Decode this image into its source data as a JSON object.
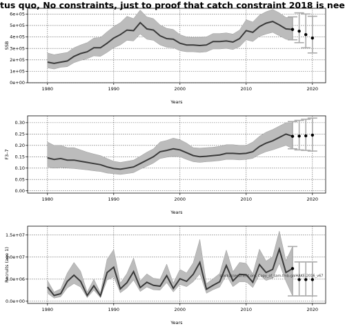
{
  "title": "tus quo, No constraints, just to proof that catch constraint 2018 is nee",
  "chart_data": [
    {
      "type": "line",
      "xlabel": "Years",
      "ylabel": "SSB",
      "xlim": [
        1977,
        2022
      ],
      "ylim": [
        0,
        650000
      ],
      "xticks": [
        1980,
        1990,
        2000,
        2010,
        2020
      ],
      "xtick_labels": [
        "1980",
        "1990",
        "2000",
        "2010",
        "2020"
      ],
      "yticks": [
        0,
        100000,
        200000,
        300000,
        400000,
        500000,
        600000
      ],
      "ytick_labels": [
        "0e+00",
        "1e+05",
        "2e+05",
        "3e+05",
        "4e+05",
        "5e+05",
        "6e+05"
      ],
      "grid": true,
      "series": [
        {
          "x": [
            1980,
            1981,
            1982,
            1983,
            1984,
            1985,
            1986,
            1987,
            1988,
            1989,
            1990,
            1991,
            1992,
            1993,
            1994,
            1995,
            1996,
            1997,
            1998,
            1999,
            2000,
            2001,
            2002,
            2003,
            2004,
            2005,
            2006,
            2007,
            2008,
            2009,
            2010,
            2011,
            2012,
            2013,
            2014,
            2015,
            2016,
            2017
          ],
          "y": [
            180000,
            170000,
            180000,
            190000,
            230000,
            255000,
            270000,
            305000,
            305000,
            345000,
            390000,
            420000,
            460000,
            455000,
            525000,
            470000,
            460000,
            410000,
            385000,
            380000,
            345000,
            330000,
            330000,
            325000,
            330000,
            360000,
            360000,
            365000,
            355000,
            385000,
            455000,
            440000,
            490000,
            520000,
            535000,
            505000,
            470000,
            465000
          ],
          "lower": [
            130000,
            120000,
            135000,
            140000,
            175000,
            195000,
            210000,
            235000,
            230000,
            265000,
            305000,
            330000,
            370000,
            365000,
            425000,
            380000,
            370000,
            330000,
            310000,
            305000,
            280000,
            270000,
            270000,
            265000,
            270000,
            295000,
            295000,
            300000,
            290000,
            315000,
            375000,
            360000,
            405000,
            425000,
            440000,
            410000,
            380000,
            370000
          ],
          "upper": [
            260000,
            245000,
            255000,
            265000,
            305000,
            330000,
            350000,
            390000,
            395000,
            445000,
            490000,
            525000,
            580000,
            560000,
            635000,
            575000,
            560000,
            505000,
            475000,
            465000,
            420000,
            400000,
            395000,
            395000,
            400000,
            430000,
            430000,
            435000,
            425000,
            460000,
            550000,
            530000,
            590000,
            620000,
            640000,
            610000,
            570000,
            570000
          ]
        }
      ],
      "projections": [
        {
          "x": 2017,
          "y": 465000,
          "lower": 375000,
          "upper": 575000
        },
        {
          "x": 2018,
          "y": 450000,
          "lower": 350000,
          "upper": 610000
        },
        {
          "x": 2019,
          "y": 420000,
          "lower": 305000,
          "upper": 600000
        },
        {
          "x": 2020,
          "y": 390000,
          "lower": 260000,
          "upper": 580000
        }
      ]
    },
    {
      "type": "line",
      "xlabel": "Years",
      "ylabel": "F3–7",
      "xlim": [
        1977,
        2022
      ],
      "ylim": [
        -0.01,
        0.33
      ],
      "xticks": [
        1980,
        1990,
        2000,
        2010,
        2020
      ],
      "xtick_labels": [
        "1980",
        "1990",
        "2000",
        "2010",
        "2020"
      ],
      "yticks": [
        0,
        0.05,
        0.1,
        0.15,
        0.2,
        0.25,
        0.3
      ],
      "ytick_labels": [
        "0.00",
        "0.05",
        "0.10",
        "0.15",
        "0.20",
        "0.25",
        "0.30"
      ],
      "grid": true,
      "series": [
        {
          "x": [
            1980,
            1981,
            1982,
            1983,
            1984,
            1985,
            1986,
            1987,
            1988,
            1989,
            1990,
            1991,
            1992,
            1993,
            1994,
            1995,
            1996,
            1997,
            1998,
            1999,
            2000,
            2001,
            2002,
            2003,
            2004,
            2005,
            2006,
            2007,
            2008,
            2009,
            2010,
            2011,
            2012,
            2013,
            2014,
            2015,
            2016,
            2017
          ],
          "y": [
            0.145,
            0.138,
            0.142,
            0.135,
            0.135,
            0.13,
            0.125,
            0.12,
            0.115,
            0.105,
            0.098,
            0.095,
            0.1,
            0.105,
            0.12,
            0.135,
            0.15,
            0.172,
            0.178,
            0.185,
            0.18,
            0.168,
            0.155,
            0.15,
            0.152,
            0.155,
            0.158,
            0.165,
            0.165,
            0.163,
            0.165,
            0.172,
            0.195,
            0.21,
            0.22,
            0.235,
            0.25,
            0.24
          ],
          "lower": [
            0.105,
            0.1,
            0.103,
            0.1,
            0.098,
            0.095,
            0.092,
            0.088,
            0.085,
            0.078,
            0.075,
            0.072,
            0.076,
            0.08,
            0.095,
            0.108,
            0.122,
            0.142,
            0.148,
            0.152,
            0.15,
            0.138,
            0.128,
            0.125,
            0.128,
            0.13,
            0.133,
            0.138,
            0.138,
            0.136,
            0.138,
            0.143,
            0.16,
            0.172,
            0.18,
            0.19,
            0.2,
            0.185
          ],
          "upper": [
            0.215,
            0.2,
            0.2,
            0.19,
            0.19,
            0.18,
            0.17,
            0.162,
            0.155,
            0.142,
            0.13,
            0.125,
            0.13,
            0.135,
            0.152,
            0.17,
            0.185,
            0.215,
            0.222,
            0.232,
            0.225,
            0.21,
            0.19,
            0.188,
            0.19,
            0.192,
            0.196,
            0.203,
            0.203,
            0.2,
            0.2,
            0.215,
            0.24,
            0.258,
            0.27,
            0.285,
            0.3,
            0.3
          ]
        }
      ],
      "projections": [
        {
          "x": 2017,
          "y": 0.24,
          "lower": 0.185,
          "upper": 0.305
        },
        {
          "x": 2018,
          "y": 0.241,
          "lower": 0.18,
          "upper": 0.31
        },
        {
          "x": 2019,
          "y": 0.242,
          "lower": 0.178,
          "upper": 0.315
        },
        {
          "x": 2020,
          "y": 0.245,
          "lower": 0.175,
          "upper": 0.32
        }
      ]
    },
    {
      "type": "line",
      "xlabel": "Years",
      "ylabel": "Recruits (age 1)",
      "xlim": [
        1977,
        2022
      ],
      "ylim": [
        -500000,
        17000000
      ],
      "xticks": [
        1980,
        1990,
        2000,
        2010,
        2020
      ],
      "xtick_labels": [
        "1980",
        "1990",
        "2000",
        "2010",
        "2020"
      ],
      "yticks": [
        0,
        5000000,
        10000000,
        15000000
      ],
      "ytick_labels": [
        "0.0e+00",
        "5.0e+06",
        "1.0e+07",
        "1.5e+07"
      ],
      "grid": true,
      "annotation": "stockassessment.org, Copy_of_sam-tmb-galHAKE-2016_v67",
      "series": [
        {
          "x": [
            1980,
            1981,
            1982,
            1983,
            1984,
            1985,
            1986,
            1987,
            1988,
            1989,
            1990,
            1991,
            1992,
            1993,
            1994,
            1995,
            1996,
            1997,
            1998,
            1999,
            2000,
            2001,
            2002,
            2003,
            2004,
            2005,
            2006,
            2007,
            2008,
            2009,
            2010,
            2011,
            2012,
            2013,
            2014,
            2015,
            2016,
            2017
          ],
          "y": [
            3200000,
            1300000,
            1700000,
            4500000,
            5900000,
            4500000,
            1300000,
            3500000,
            1200000,
            6500000,
            7700000,
            2800000,
            4200000,
            6700000,
            3100000,
            4300000,
            3600000,
            3400000,
            5800000,
            2900000,
            5100000,
            4500000,
            6100000,
            8800000,
            2700000,
            3600000,
            4400000,
            8100000,
            4600000,
            6100000,
            6000000,
            4300000,
            8300000,
            6500000,
            7200000,
            11800000,
            6500000,
            7400000
          ],
          "lower": [
            1800000,
            700000,
            1000000,
            3000000,
            4000000,
            3200000,
            800000,
            2500000,
            800000,
            4800000,
            5500000,
            1900000,
            3000000,
            4800000,
            2200000,
            3200000,
            2600000,
            2500000,
            4200000,
            2100000,
            3800000,
            3300000,
            4400000,
            6200000,
            1800000,
            2600000,
            3200000,
            5900000,
            3300000,
            4400000,
            4400000,
            3100000,
            6000000,
            4700000,
            5200000,
            8600000,
            4500000,
            1200000
          ],
          "upper": [
            4700000,
            2100000,
            2800000,
            6400000,
            8800000,
            6800000,
            2100000,
            5000000,
            1900000,
            9500000,
            11700000,
            4100000,
            6300000,
            9800000,
            4600000,
            6200000,
            5200000,
            5000000,
            8400000,
            4100000,
            7200000,
            6400000,
            8700000,
            14000000,
            4000000,
            5100000,
            6300000,
            11600000,
            6700000,
            8800000,
            8600000,
            6200000,
            11800000,
            9100000,
            10100000,
            15900000,
            9200000,
            12400000
          ]
        }
      ],
      "projections": [
        {
          "x": 2017,
          "y": 7400000,
          "lower": 1200000,
          "upper": 12400000
        },
        {
          "x": 2018,
          "y": 4900000,
          "lower": 1200000,
          "upper": 8900000
        },
        {
          "x": 2019,
          "y": 4900000,
          "lower": 1200000,
          "upper": 8900000
        },
        {
          "x": 2020,
          "y": 4900000,
          "lower": 1200000,
          "upper": 8900000
        }
      ]
    }
  ]
}
